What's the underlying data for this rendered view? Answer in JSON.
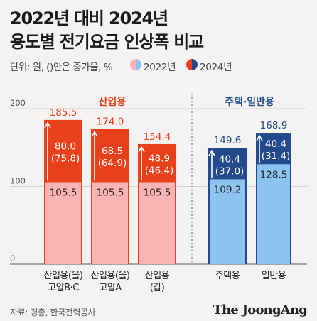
{
  "header": {
    "title_line1": "2022년 대비 2024년",
    "title_line2": "용도별 전기요금 인상폭 비교",
    "unit_note": "단위: 원, ()안은 증가율, %",
    "legend_2022": "2022년",
    "legend_2024": "2024년"
  },
  "footer": {
    "source": "자료: 경총, 한국전력공사",
    "brand": "The JoongAng"
  },
  "colors": {
    "industrial_2024": "#e8401a",
    "industrial_2022": "#fbb4b4",
    "residential_2024": "#234a8c",
    "residential_2022": "#8cc4ef",
    "industrial_label": "#e8401a",
    "residential_label": "#234a8c"
  },
  "chart_data": {
    "type": "bar",
    "ylim": [
      0,
      200
    ],
    "yticks": [
      0,
      100,
      200
    ],
    "grid": true,
    "groups": [
      {
        "label": "산업용",
        "categories": [
          0,
          1,
          2
        ]
      },
      {
        "label": "주택·일반용",
        "categories": [
          3,
          4
        ]
      }
    ],
    "categories": [
      "산업용(을)\n고압B·C",
      "산업용(을)\n고압A",
      "산업용\n(갑)",
      "주택용",
      "일반용"
    ],
    "series": [
      {
        "name": "2022년",
        "values": [
          105.5,
          105.5,
          105.5,
          109.2,
          128.5
        ]
      },
      {
        "name": "2024년",
        "values": [
          185.5,
          174.0,
          154.4,
          149.6,
          168.9
        ]
      }
    ],
    "increase": [
      "80.0",
      "68.5",
      "48.9",
      "40.4",
      "40.4"
    ],
    "increase_pct": [
      "(75.8)",
      "(64.9)",
      "(46.4)",
      "(37.0)",
      "(31.4)"
    ],
    "value_2022_labels": [
      "105.5",
      "105.5",
      "105.5",
      "109.2",
      "128.5"
    ],
    "value_2024_labels": [
      "185.5",
      "174.0",
      "154.4",
      "149.6",
      "168.9"
    ]
  }
}
